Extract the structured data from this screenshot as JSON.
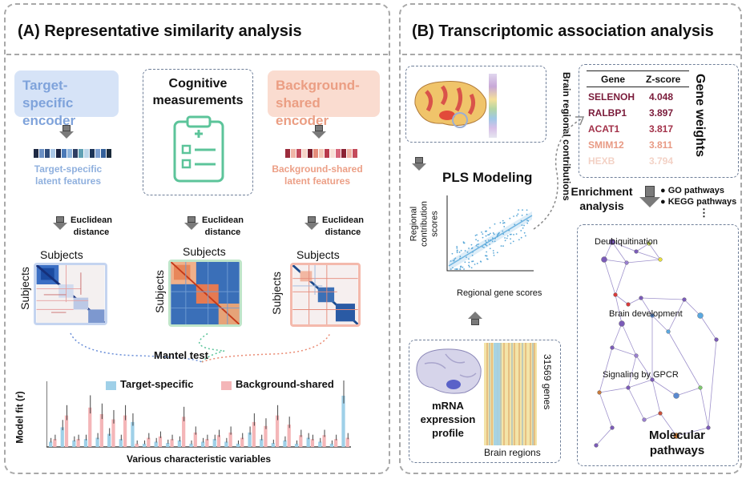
{
  "panel_a": {
    "title": "(A)   Representative similarity analysis",
    "target_encoder": "Target-specific encoder",
    "cognitive": "Cognitive measurements",
    "background_encoder": "Background-shared encoder",
    "target_latent": "Target-specific latent features",
    "background_latent": "Background-shared latent features",
    "euclidean": "Euclidean distance",
    "subjects": "Subjects",
    "mantel": "Mantel  test",
    "chart": {
      "ylabel": "Model fit (r)",
      "xlabel": "Various characteristic variables",
      "legend_target": "Target-specific",
      "legend_background": "Background-shared"
    }
  },
  "panel_b": {
    "title": "(B)   Transcriptomic association analysis",
    "brain_regional": "Brain regional contributions",
    "pls": "PLS Modeling",
    "scatter_ylabel": "Regional contribution scores",
    "scatter_xlabel": "Regional gene scores",
    "mrna": "mRNA expression profile",
    "genes_count": "31569 genes",
    "brain_regions": "Brain regions",
    "gene_weights": "Gene weights",
    "gene_header": "Gene",
    "zscore_header": "Z-score",
    "genes": [
      {
        "name": "SELENOH",
        "z": "4.048",
        "color": "#7a1b3a"
      },
      {
        "name": "RALBP1",
        "z": "3.897",
        "color": "#7a1b3a"
      },
      {
        "name": "ACAT1",
        "z": "3.817",
        "color": "#a3324a"
      },
      {
        "name": "SMIM12",
        "z": "3.811",
        "color": "#e89a84"
      },
      {
        "name": "HEXB",
        "z": "3.794",
        "color": "#f3d2c6"
      }
    ],
    "enrichment": "Enrichment analysis",
    "go": "GO pathways",
    "kegg": "KEGG pathways",
    "ellipsis": "⋮",
    "network_labels": [
      "Deubiquitination",
      "Brain development",
      "Signaling by GPCR"
    ],
    "molecular": "Molecular pathways"
  },
  "chart_data": {
    "type": "bar",
    "title": "",
    "xlabel": "Various characteristic variables",
    "ylabel": "Model fit (r)",
    "series": [
      {
        "name": "Target-specific",
        "color": "#9fd0e8",
        "values": [
          0.08,
          0.3,
          0.1,
          0.12,
          0.14,
          0.2,
          0.12,
          0.38,
          0.05,
          0.08,
          0.06,
          0.1,
          0.05,
          0.08,
          0.12,
          0.08,
          0.05,
          0.22,
          0.12,
          0.06,
          0.1,
          0.05,
          0.14,
          0.08,
          0.05,
          0.78
        ]
      },
      {
        "name": "Background-shared",
        "color": "#f4b6b8",
        "values": [
          0.12,
          0.48,
          0.12,
          0.6,
          0.5,
          0.42,
          0.48,
          0.05,
          0.14,
          0.16,
          0.12,
          0.46,
          0.22,
          0.12,
          0.18,
          0.22,
          0.14,
          0.38,
          0.32,
          0.48,
          0.34,
          0.18,
          0.12,
          0.18,
          0.12,
          0.14
        ]
      }
    ],
    "ylim": [
      0,
      1
    ]
  }
}
